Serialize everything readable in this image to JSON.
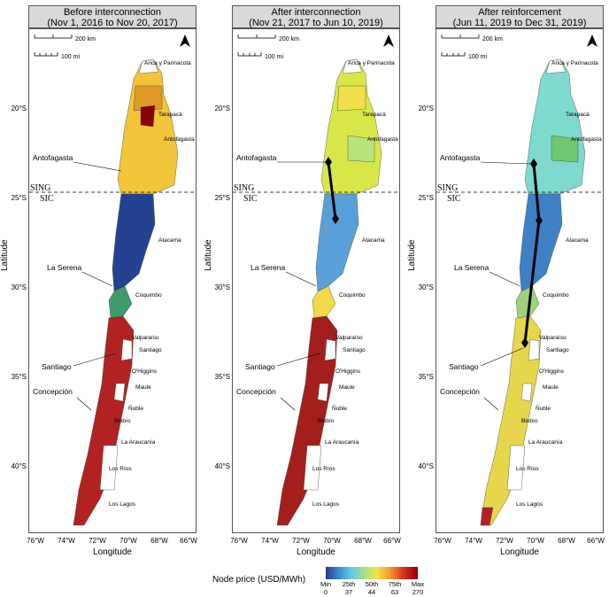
{
  "panels": [
    {
      "title_line1": "Before interconnection",
      "title_line2": "(Nov 1, 2016 to Nov 20, 2017)"
    },
    {
      "title_line1": "After interconnection",
      "title_line2": "(Nov 21, 2017 to Jun 10, 2019)"
    },
    {
      "title_line1": "After reinforcement",
      "title_line2": "(Jun 11, 2019 to Dec 31, 2019)"
    }
  ],
  "axes": {
    "ylabel": "Latitude",
    "xlabel": "Longitude",
    "lat_ticks": [
      "20°S",
      "25°S",
      "30°S",
      "35°S",
      "40°S"
    ],
    "lon_ticks": [
      "76°W",
      "74°W",
      "72°W",
      "70°W",
      "68°W",
      "66°W"
    ]
  },
  "scale_bar": {
    "km": "200 km",
    "mi": "100 mi"
  },
  "grid_divider": {
    "north": "SING",
    "south": "SIC"
  },
  "regions": [
    "Arica y Parinacota",
    "Tarapacá",
    "Antofagasta",
    "Atacama",
    "Coquimbo",
    "Valparaíso",
    "Santiago",
    "O'Higgins",
    "Maule",
    "Ñuble",
    "Biobío",
    "La Araucanía",
    "Los Ríos",
    "Los Lagos"
  ],
  "cities": {
    "antofagasta": "Antofagasta",
    "laserena": "La Serena",
    "santiago": "Santiago",
    "concepcion": "Concepción"
  },
  "legend": {
    "title": "Node price (USD/MWh)",
    "labels_top": [
      "Min",
      "25th",
      "50th",
      "75th",
      "Max"
    ],
    "labels_bottom": [
      "0",
      "37",
      "44",
      "63",
      "270"
    ]
  },
  "colors": {
    "p1_north": "#f2c43a",
    "p1_south": "#24428f",
    "p1_central": "#b22222",
    "p2_north": "#d9e64a",
    "p2_atacama": "#5aa0d8",
    "p2_central": "#a51e1e",
    "p3_north": "#7fd9cf",
    "p3_atacama": "#3f7fc4",
    "p3_central": "#e7d64c"
  }
}
